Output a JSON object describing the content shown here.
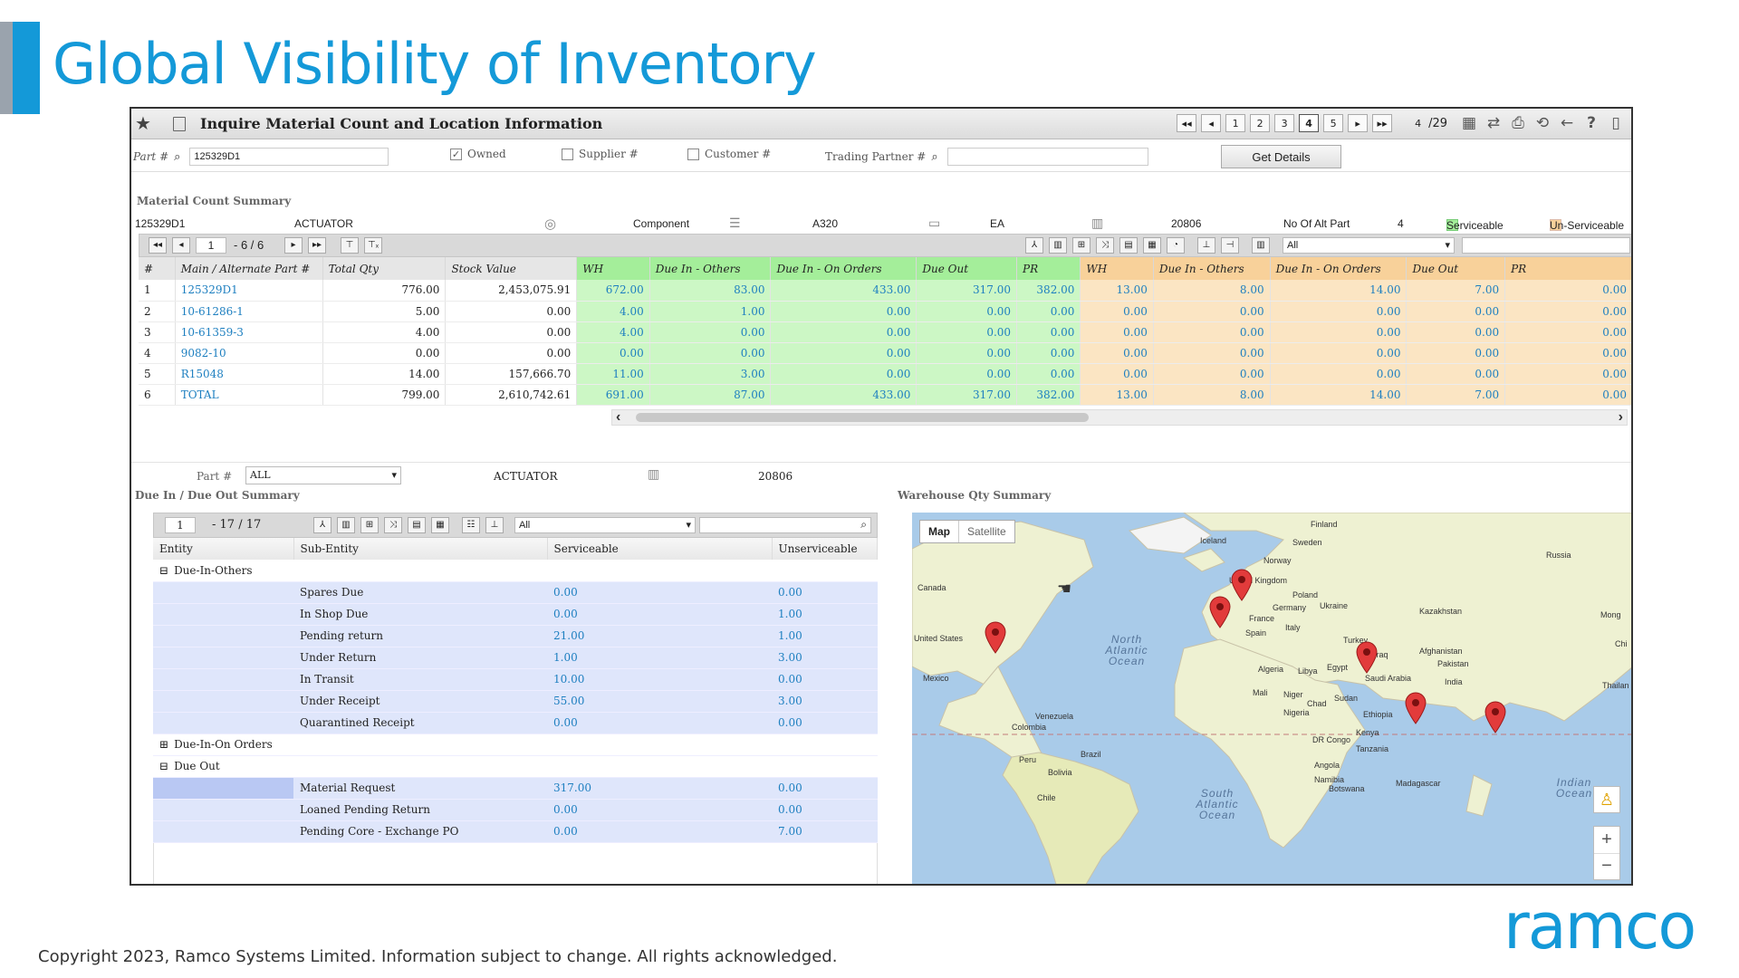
{
  "slide": {
    "title": "Global Visibility of Inventory",
    "footer": "Copyright 2023, Ramco Systems Limited. Information subject to change. All rights acknowledged.",
    "logo": "ramco"
  },
  "app": {
    "window_title": "Inquire Material Count and Location Information",
    "pager": {
      "pages": [
        "1",
        "2",
        "3",
        "4",
        "5"
      ],
      "current": "4",
      "current_input": "4",
      "total": "/29"
    },
    "filters": {
      "part_label": "Part #",
      "part_value": "125329D1",
      "owned_label": "Owned",
      "owned_checked": "✓",
      "supplier_label": "Supplier #",
      "customer_label": "Customer #",
      "trading_partner_label": "Trading Partner #",
      "trading_partner_value": "",
      "get_details": "Get Details"
    },
    "summary": {
      "section_label": "Material Count Summary",
      "part_no": "125329D1",
      "description": "ACTUATOR",
      "part_type": "Component",
      "model": "A320",
      "uom": "EA",
      "code": "20806",
      "alt_part_label": "No Of Alt Part",
      "alt_part_count": "4",
      "legend_serviceable": "Serviceable",
      "legend_unserviceable": "Un-Serviceable",
      "grid_page_input": "1",
      "grid_range": "- 6 / 6",
      "grid_filter_value": "All",
      "columns": [
        "#",
        "Main / Alternate Part #",
        "Total Qty",
        "Stock Value",
        "WH",
        "Due In - Others",
        "Due In - On Orders",
        "Due Out",
        "PR",
        "WH",
        "Due In - Others",
        "Due In - On Orders",
        "Due Out",
        "PR"
      ],
      "rows": [
        [
          "1",
          "125329D1",
          "776.00",
          "2,453,075.91",
          "672.00",
          "83.00",
          "433.00",
          "317.00",
          "382.00",
          "13.00",
          "8.00",
          "14.00",
          "7.00",
          "0.00"
        ],
        [
          "2",
          "10-61286-1",
          "5.00",
          "0.00",
          "4.00",
          "1.00",
          "0.00",
          "0.00",
          "0.00",
          "0.00",
          "0.00",
          "0.00",
          "0.00",
          "0.00"
        ],
        [
          "3",
          "10-61359-3",
          "4.00",
          "0.00",
          "4.00",
          "0.00",
          "0.00",
          "0.00",
          "0.00",
          "0.00",
          "0.00",
          "0.00",
          "0.00",
          "0.00"
        ],
        [
          "4",
          "9082-10",
          "0.00",
          "0.00",
          "0.00",
          "0.00",
          "0.00",
          "0.00",
          "0.00",
          "0.00",
          "0.00",
          "0.00",
          "0.00",
          "0.00"
        ],
        [
          "5",
          "R15048",
          "14.00",
          "157,666.70",
          "11.00",
          "3.00",
          "0.00",
          "0.00",
          "0.00",
          "0.00",
          "0.00",
          "0.00",
          "0.00",
          "0.00"
        ],
        [
          "6",
          "TOTAL",
          "799.00",
          "2,610,742.61",
          "691.00",
          "87.00",
          "433.00",
          "317.00",
          "382.00",
          "13.00",
          "8.00",
          "14.00",
          "7.00",
          "0.00"
        ]
      ]
    },
    "lower": {
      "part_label": "Part #",
      "part_value": "ALL",
      "description": "ACTUATOR",
      "code": "20806",
      "due_section_label": "Due In / Due Out Summary",
      "warehouse_section_label": "Warehouse Qty Summary",
      "grid_page_input": "1",
      "grid_range": "- 17 / 17",
      "grid_filter_value": "All",
      "columns": [
        "Entity",
        "Sub-Entity",
        "Serviceable",
        "Unserviceable"
      ],
      "groups": [
        {
          "label": "Due-In-Others",
          "expander": "⊟",
          "items": [
            {
              "name": "Spares Due",
              "serviceable": "0.00",
              "unserviceable": "0.00"
            },
            {
              "name": "In Shop Due",
              "serviceable": "0.00",
              "unserviceable": "1.00"
            },
            {
              "name": "Pending return",
              "serviceable": "21.00",
              "unserviceable": "1.00"
            },
            {
              "name": "Under Return",
              "serviceable": "1.00",
              "unserviceable": "3.00"
            },
            {
              "name": "In Transit",
              "serviceable": "10.00",
              "unserviceable": "0.00"
            },
            {
              "name": "Under Receipt",
              "serviceable": "55.00",
              "unserviceable": "3.00"
            },
            {
              "name": "Quarantined Receipt",
              "serviceable": "0.00",
              "unserviceable": "0.00"
            }
          ]
        },
        {
          "label": "Due-In-On Orders",
          "expander": "⊞",
          "items": []
        },
        {
          "label": "Due Out",
          "expander": "⊟",
          "items": [
            {
              "name": "Material Request",
              "serviceable": "317.00",
              "unserviceable": "0.00"
            },
            {
              "name": "Loaned Pending Return",
              "serviceable": "0.00",
              "unserviceable": "0.00"
            },
            {
              "name": "Pending Core - Exchange PO",
              "serviceable": "0.00",
              "unserviceable": "7.00"
            }
          ]
        }
      ]
    },
    "map": {
      "tab_map": "Map",
      "tab_satellite": "Satellite",
      "labels": {
        "finland": "Finland",
        "sweden": "Sweden",
        "iceland": "Iceland",
        "norway": "Norway",
        "russia": "Russia",
        "uk": "United Kingdom",
        "poland": "Poland",
        "germany": "Germany",
        "ukraine": "Ukraine",
        "kazakhstan": "Kazakhstan",
        "mongolia": "Mong",
        "france": "France",
        "italy": "Italy",
        "spain": "Spain",
        "turkey": "Turkey",
        "canada": "Canada",
        "usa": "United States",
        "mexico": "Mexico",
        "n_atlantic": "North Atlantic Ocean",
        "iraq": "Iraq",
        "afghanistan": "Afghanistan",
        "pakistan": "Pakistan",
        "china": "Chi",
        "algeria": "Algeria",
        "libya": "Libya",
        "egypt": "Egypt",
        "saudi": "Saudi Arabia",
        "india": "India",
        "thailand": "Thailan",
        "mali": "Mali",
        "niger": "Niger",
        "chad": "Chad",
        "sudan": "Sudan",
        "nigeria": "Nigeria",
        "ethiopia": "Ethiopia",
        "venezuela": "Venezuela",
        "colombia": "Colombia",
        "kenya": "Kenya",
        "drcongo": "DR Congo",
        "tanzania": "Tanzania",
        "peru": "Peru",
        "brazil": "Brazil",
        "bolivia": "Bolivia",
        "angola": "Angola",
        "namibia": "Namibia",
        "botswana": "Botswana",
        "madagascar": "Madagascar",
        "chile": "Chile",
        "s_atlantic": "South Atlantic Ocean",
        "indian_ocean": "Indian Ocean"
      },
      "zoom_in": "+",
      "zoom_out": "−"
    }
  }
}
